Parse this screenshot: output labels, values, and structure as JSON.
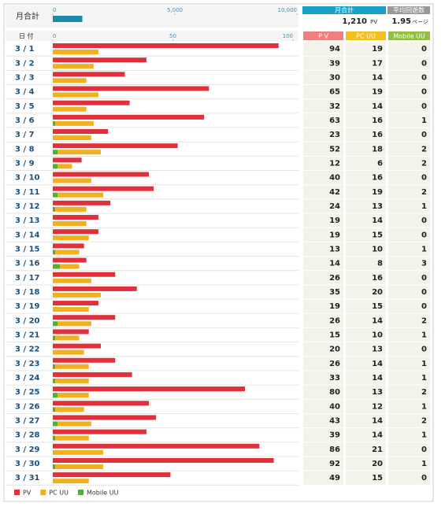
{
  "summary": {
    "label": "月合計",
    "total_header": "月合計",
    "pv": {
      "value": 1210,
      "label": "1,210"
    },
    "pv_unit": "PV",
    "avg_header": "平均回遊数",
    "avg": 1.95,
    "avg_unit": "ページ",
    "color": "#1a8ca8",
    "xlim": [
      0,
      10000
    ],
    "xticks": [
      0,
      {
        "value": 5000,
        "label": "5,000"
      },
      {
        "value": 10000,
        "label": "10,000"
      }
    ]
  },
  "chart_data": {
    "type": "bar",
    "date_header": "日 付",
    "column_headers": [
      "P V",
      "PC UU",
      "Mobile UU"
    ],
    "categories": [
      "3 / 1",
      "3 / 2",
      "3 / 3",
      "3 / 4",
      "3 / 5",
      "3 / 6",
      "3 / 7",
      "3 / 8",
      "3 / 9",
      "3 / 10",
      "3 / 11",
      "3 / 12",
      "3 / 13",
      "3 / 14",
      "3 / 15",
      "3 / 16",
      "3 / 17",
      "3 / 18",
      "3 / 19",
      "3 / 20",
      "3 / 21",
      "3 / 22",
      "3 / 23",
      "3 / 24",
      "3 / 25",
      "3 / 26",
      "3 / 27",
      "3 / 28",
      "3 / 29",
      "3 / 30",
      "3 / 31"
    ],
    "series": [
      {
        "name": "PV",
        "color": "#e0303c",
        "values": [
          94,
          39,
          30,
          65,
          32,
          63,
          23,
          52,
          12,
          40,
          42,
          24,
          19,
          19,
          13,
          14,
          26,
          35,
          19,
          26,
          15,
          20,
          26,
          33,
          80,
          40,
          43,
          39,
          86,
          92,
          49
        ]
      },
      {
        "name": "PC UU",
        "color": "#f0b020",
        "values": [
          19,
          17,
          14,
          19,
          14,
          16,
          16,
          18,
          6,
          16,
          19,
          13,
          14,
          15,
          10,
          8,
          16,
          20,
          15,
          14,
          10,
          13,
          14,
          14,
          13,
          12,
          14,
          14,
          21,
          20,
          15
        ]
      },
      {
        "name": "Mobile UU",
        "color": "#50b030",
        "values": [
          0,
          0,
          0,
          0,
          0,
          1,
          0,
          2,
          2,
          0,
          2,
          1,
          0,
          0,
          1,
          3,
          0,
          0,
          0,
          2,
          1,
          0,
          1,
          1,
          2,
          1,
          2,
          1,
          0,
          1,
          0
        ]
      }
    ],
    "xlim": [
      0,
      100
    ],
    "xticks": [
      0,
      50,
      100
    ]
  }
}
